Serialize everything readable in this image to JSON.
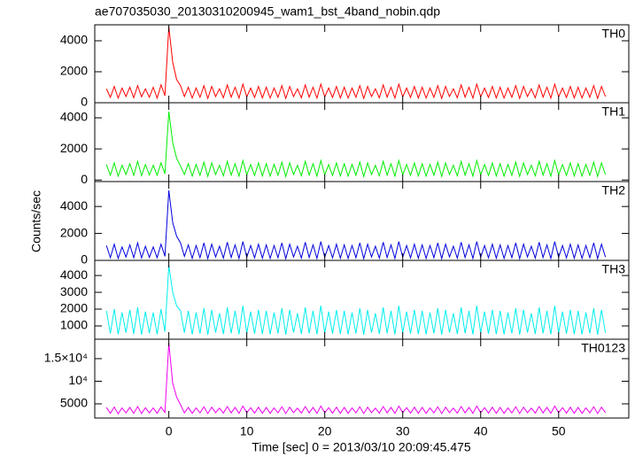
{
  "title": "ae707035030_20130310200945_wam1_bst_4band_nobin.qdp",
  "xlabel": "Time [sec] 0 = 2013/03/10 20:09:45.475",
  "ylabel": "Counts/sec",
  "xlim": [
    -9.5,
    59
  ],
  "xticks": [
    0,
    10,
    20,
    30,
    40,
    50
  ],
  "x": [
    -8,
    -7.5,
    -7,
    -6.5,
    -6,
    -5.5,
    -5,
    -4.5,
    -4,
    -3.5,
    -3,
    -2.5,
    -2,
    -1.5,
    -1,
    -0.5,
    0,
    0.5,
    1,
    1.5,
    2,
    2.5,
    3,
    3.5,
    4,
    4.5,
    5,
    5.5,
    6,
    6.5,
    7,
    7.5,
    8,
    8.5,
    9,
    9.5,
    10,
    10.5,
    11,
    11.5,
    12,
    12.5,
    13,
    13.5,
    14,
    14.5,
    15,
    15.5,
    16,
    16.5,
    17,
    17.5,
    18,
    18.5,
    19,
    19.5,
    20,
    20.5,
    21,
    21.5,
    22,
    22.5,
    23,
    23.5,
    24,
    24.5,
    25,
    25.5,
    26,
    26.5,
    27,
    27.5,
    28,
    28.5,
    29,
    29.5,
    30,
    30.5,
    31,
    31.5,
    32,
    32.5,
    33,
    33.5,
    34,
    34.5,
    35,
    35.5,
    36,
    36.5,
    37,
    37.5,
    38,
    38.5,
    39,
    39.5,
    40,
    40.5,
    41,
    41.5,
    42,
    42.5,
    43,
    43.5,
    44,
    44.5,
    45,
    45.5,
    46,
    46.5,
    47,
    47.5,
    48,
    48.5,
    49,
    49.5,
    50,
    50.5,
    51,
    51.5,
    52,
    52.5,
    53,
    53.5,
    54,
    54.5,
    55,
    55.5,
    56
  ],
  "chart_data": [
    {
      "type": "line",
      "name": "TH0",
      "color": "#ff0000",
      "ylim": [
        0,
        5030
      ],
      "yticks": [
        0,
        2000,
        4000
      ],
      "values": [
        900,
        350,
        1050,
        300,
        950,
        400,
        1000,
        320,
        1100,
        380,
        900,
        350,
        1000,
        300,
        1150,
        450,
        4900,
        2600,
        1500,
        1100,
        400,
        1000,
        300,
        950,
        350,
        1100,
        280,
        1050,
        400,
        900,
        320,
        1150,
        360,
        1000,
        300,
        1200,
        380,
        950,
        340,
        1050,
        310,
        1000,
        300,
        950,
        350,
        1100,
        280,
        1050,
        400,
        900,
        320,
        1150,
        360,
        1000,
        300,
        1200,
        380,
        950,
        340,
        1050,
        310,
        1000,
        300,
        950,
        350,
        1100,
        280,
        1050,
        400,
        900,
        320,
        1150,
        360,
        1000,
        300,
        1200,
        380,
        950,
        340,
        1050,
        310,
        1000,
        300,
        950,
        350,
        1100,
        280,
        1050,
        400,
        900,
        320,
        1150,
        360,
        1000,
        300,
        1200,
        380,
        950,
        340,
        1050,
        310,
        1000,
        300,
        950,
        350,
        1100,
        280,
        1050,
        400,
        900,
        320,
        1150,
        360,
        1000,
        300,
        1200,
        380,
        950,
        340,
        1050,
        310,
        1000,
        300,
        950,
        350,
        1100,
        280,
        1050,
        400
      ]
    },
    {
      "type": "line",
      "name": "TH1",
      "color": "#00ee00",
      "ylim": [
        -100,
        4970
      ],
      "yticks": [
        0,
        2000,
        4000
      ],
      "values": [
        1000,
        300,
        1100,
        250,
        950,
        350,
        1050,
        300,
        1200,
        280,
        1000,
        320,
        950,
        300,
        1100,
        400,
        4400,
        2400,
        1400,
        900,
        350,
        1050,
        250,
        1000,
        300,
        1150,
        230,
        1100,
        350,
        950,
        270,
        1200,
        310,
        1050,
        250,
        1250,
        330,
        1000,
        290,
        1100,
        260,
        1050,
        250,
        1000,
        300,
        1150,
        230,
        1100,
        350,
        950,
        270,
        1200,
        310,
        1050,
        250,
        1250,
        330,
        1000,
        290,
        1100,
        260,
        1050,
        250,
        1000,
        300,
        1150,
        230,
        1100,
        350,
        950,
        270,
        1200,
        310,
        1050,
        250,
        1250,
        330,
        1000,
        290,
        1100,
        260,
        1050,
        250,
        1000,
        300,
        1150,
        230,
        1100,
        350,
        950,
        270,
        1200,
        310,
        1050,
        250,
        1250,
        330,
        1000,
        290,
        1100,
        260,
        1050,
        250,
        1000,
        300,
        1150,
        230,
        1100,
        350,
        950,
        270,
        1200,
        310,
        1050,
        250,
        1250,
        330,
        1000,
        290,
        1100,
        260,
        1050,
        250,
        1000,
        300,
        1150,
        230,
        1100,
        350
      ]
    },
    {
      "type": "line",
      "name": "TH2",
      "color": "#0000dd",
      "ylim": [
        0,
        5850
      ],
      "yticks": [
        0,
        2000,
        4000
      ],
      "values": [
        1100,
        200,
        1200,
        150,
        1000,
        250,
        1150,
        200,
        1300,
        180,
        1050,
        220,
        1000,
        200,
        1200,
        300,
        5200,
        2800,
        1800,
        1300,
        300,
        1150,
        150,
        1100,
        200,
        1300,
        130,
        1200,
        250,
        1050,
        170,
        1350,
        210,
        1150,
        150,
        1400,
        230,
        1100,
        190,
        1200,
        160,
        1150,
        150,
        1100,
        200,
        1300,
        130,
        1200,
        250,
        1050,
        170,
        1350,
        210,
        1150,
        150,
        1400,
        230,
        1100,
        190,
        1200,
        160,
        1150,
        150,
        1100,
        200,
        1300,
        130,
        1200,
        250,
        1050,
        170,
        1350,
        210,
        1150,
        150,
        1400,
        230,
        1100,
        190,
        1200,
        160,
        1150,
        150,
        1100,
        200,
        1300,
        130,
        1200,
        250,
        1050,
        170,
        1350,
        210,
        1150,
        150,
        1400,
        230,
        1100,
        190,
        1200,
        160,
        1150,
        150,
        1100,
        200,
        1300,
        130,
        1200,
        250,
        1050,
        170,
        1350,
        210,
        1150,
        150,
        1400,
        230,
        1100,
        190,
        1200,
        160,
        1150,
        150,
        1100,
        200,
        1300,
        130,
        1200,
        250
      ]
    },
    {
      "type": "line",
      "name": "TH3",
      "color": "#00eeee",
      "ylim": [
        210,
        4900
      ],
      "yticks": [
        1000,
        2000,
        3000,
        4000
      ],
      "values": [
        1900,
        550,
        2000,
        500,
        1800,
        600,
        1950,
        520,
        2100,
        480,
        1850,
        570,
        1800,
        500,
        2000,
        650,
        4600,
        3000,
        2200,
        1900,
        600,
        1900,
        500,
        1800,
        550,
        2050,
        480,
        1950,
        600,
        1750,
        520,
        2100,
        560,
        1900,
        500,
        2200,
        580,
        1850,
        540,
        1950,
        510,
        1900,
        500,
        1800,
        550,
        2050,
        480,
        1950,
        600,
        1750,
        520,
        2100,
        560,
        1900,
        500,
        2200,
        580,
        1850,
        540,
        1950,
        510,
        1900,
        500,
        1800,
        550,
        2050,
        480,
        1950,
        600,
        1750,
        520,
        2100,
        560,
        1900,
        500,
        2200,
        580,
        1850,
        540,
        1950,
        510,
        1900,
        500,
        1800,
        550,
        2050,
        480,
        1950,
        600,
        1750,
        520,
        2100,
        560,
        1900,
        500,
        2200,
        580,
        1850,
        540,
        1950,
        510,
        1900,
        500,
        1800,
        550,
        2050,
        480,
        1950,
        600,
        1750,
        520,
        2100,
        560,
        1900,
        500,
        2200,
        580,
        1850,
        540,
        1950,
        510,
        1900,
        500,
        1800,
        550,
        2050,
        480,
        1950,
        600
      ]
    },
    {
      "type": "line",
      "name": "TH0123",
      "color": "#ee00ee",
      "ylim": [
        1860,
        19300
      ],
      "yticks": [
        5000,
        {
          "value": 10000,
          "label": "10⁴"
        },
        {
          "value": 15000,
          "label": "1.5×10⁴"
        }
      ],
      "values": [
        4200,
        2900,
        4300,
        2800,
        4100,
        3000,
        4200,
        2900,
        4400,
        2850,
        4150,
        3000,
        4100,
        2900,
        4300,
        3100,
        18500,
        9500,
        6500,
        4800,
        3000,
        4200,
        2900,
        4100,
        3000,
        4350,
        2850,
        4250,
        3050,
        4050,
        2950,
        4400,
        3000,
        4200,
        2900,
        4500,
        3050,
        4150,
        2950,
        4250,
        2900,
        4200,
        2900,
        4100,
        3000,
        4350,
        2850,
        4250,
        3050,
        4050,
        2950,
        4400,
        3000,
        4200,
        2900,
        4500,
        3050,
        4150,
        2950,
        4250,
        2900,
        4200,
        2900,
        4100,
        3000,
        4350,
        2850,
        4250,
        3050,
        4050,
        2950,
        4400,
        3000,
        4200,
        2900,
        4500,
        3050,
        4150,
        2950,
        4250,
        2900,
        4200,
        2900,
        4100,
        3000,
        4350,
        2850,
        4250,
        3050,
        4050,
        2950,
        4400,
        3000,
        4200,
        2900,
        4500,
        3050,
        4150,
        2950,
        4250,
        2900,
        4200,
        2900,
        4100,
        3000,
        4350,
        2850,
        4250,
        3050,
        4050,
        2950,
        4400,
        3000,
        4200,
        2900,
        4500,
        3050,
        4150,
        2950,
        4250,
        2900,
        4200,
        2900,
        4100,
        3000,
        4350,
        2850,
        4250,
        3050
      ]
    }
  ]
}
